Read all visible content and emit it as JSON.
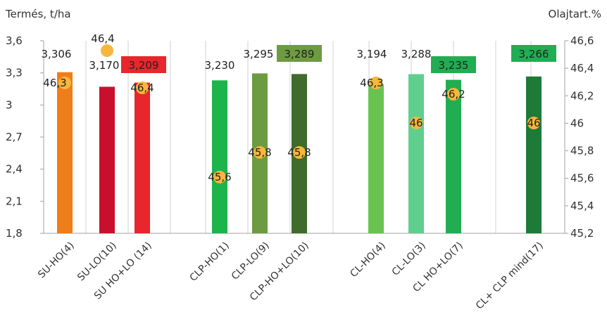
{
  "chart_data": {
    "type": "bar",
    "left_axis_title": "Termés, t/ha",
    "right_axis_title": "Olajtart.%",
    "left_ticks": [
      "3,6",
      "3,3",
      "3",
      "2,7",
      "2,4",
      "2,1",
      "1,8"
    ],
    "right_ticks": [
      "46,6",
      "46,4",
      "46,2",
      "46",
      "45,8",
      "45,6",
      "45,4",
      "45,2"
    ],
    "ylim_left": [
      1.8,
      3.6
    ],
    "ylim_right": [
      45.2,
      46.6
    ],
    "grid": "vertical",
    "categories": [
      "SU-HO(4)",
      "SU-LO(10)",
      "SU HO+LO (14)",
      "CLP-HO(1)",
      "CLP-LO(9)",
      "CLP-HO+LO(10)",
      "CL-HO(4)",
      "CL-LO(3)",
      "CL HO+LO(7)",
      "CL+ CLP mind(17)"
    ],
    "series": [
      {
        "axis": "left",
        "values": [
          3.306,
          3.17,
          3.209,
          3.23,
          3.295,
          3.289,
          3.194,
          3.288,
          3.235,
          3.266
        ],
        "labels": [
          "3,306",
          "3,170",
          "3,209",
          "3,230",
          "3,295",
          "3,289",
          "3,194",
          "3,288",
          "3,235",
          "3,266"
        ],
        "colors": [
          "#ef7d1a",
          "#c8102e",
          "#e8262b",
          "#1db44b",
          "#6d9b42",
          "#3f6b2c",
          "#69c350",
          "#5ecf8e",
          "#21ad52",
          "#1d7a37"
        ],
        "label_box_colors": [
          null,
          null,
          "#e8262b",
          null,
          null,
          "#6d9b42",
          null,
          null,
          "#21ad52",
          "#21ad52"
        ]
      },
      {
        "axis": "right",
        "values": [
          46.3,
          46.4,
          46.4,
          45.6,
          45.8,
          45.8,
          46.3,
          46.0,
          46.2,
          46.0
        ],
        "labels": [
          "46,3",
          "46,4",
          "46,4",
          "45,6",
          "45,8",
          "45,8",
          "46,3",
          "46",
          "46,2",
          "46"
        ],
        "marker_color": "#f6b73c"
      }
    ]
  }
}
